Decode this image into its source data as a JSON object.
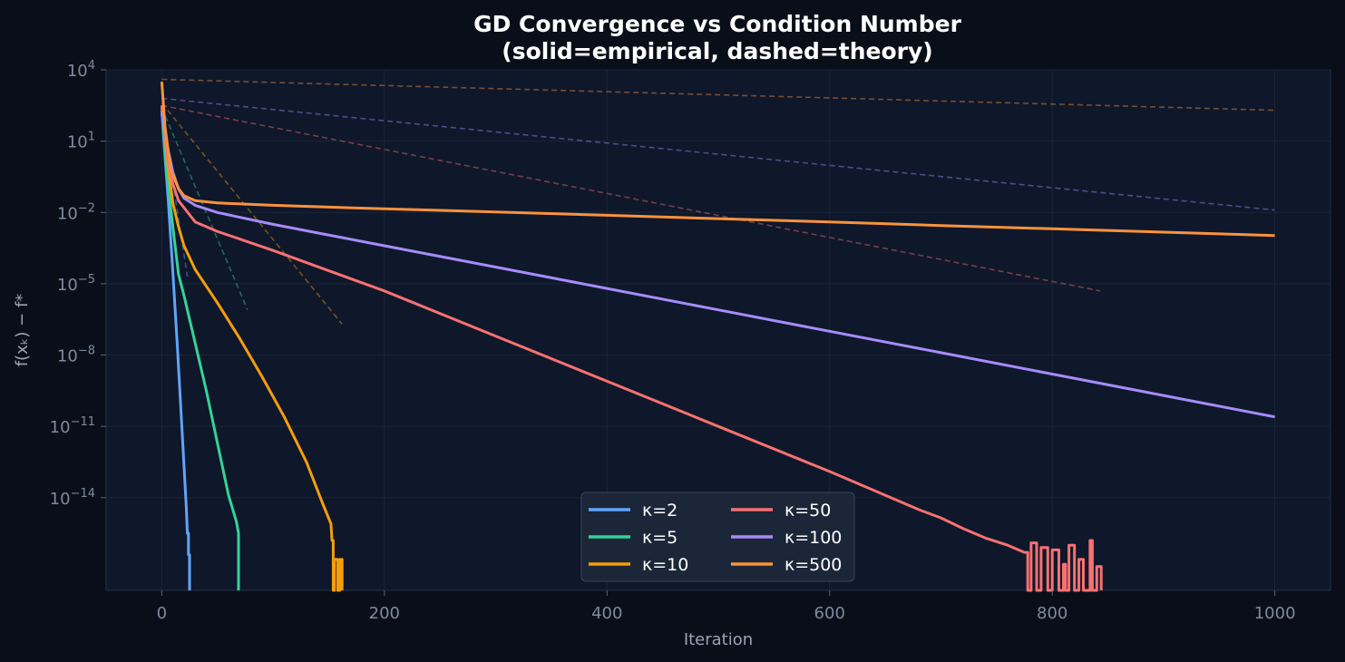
{
  "chart_data": {
    "type": "line",
    "title": "GD Convergence vs Condition Number",
    "subtitle": "(solid=empirical, dashed=theory)",
    "xlabel": "Iteration",
    "ylabel": "f(xₖ) − f*",
    "xlim": [
      -50,
      1050
    ],
    "ylim_exponent": [
      -17.9,
      4
    ],
    "yscale": "log",
    "x_ticks": [
      0,
      200,
      400,
      600,
      800,
      1000
    ],
    "y_tick_exponents": [
      4,
      1,
      -2,
      -5,
      -8,
      -11,
      -14
    ],
    "grid": true,
    "legend_position": "bottom-center",
    "legend_columns": 2,
    "series": [
      {
        "name": "κ=2",
        "color": "#60a5fa",
        "empirical": [
          [
            0,
            2.3
          ],
          [
            3,
            0.3
          ],
          [
            6,
            -1.6
          ],
          [
            10,
            -4.5
          ],
          [
            14,
            -7.6
          ],
          [
            18,
            -11
          ],
          [
            22,
            -14.4
          ],
          [
            23,
            -15.5
          ],
          [
            24,
            -15.5
          ],
          [
            24,
            -16.4
          ],
          [
            25,
            -16.4
          ],
          [
            25,
            -17.9
          ]
        ],
        "theory": [
          [
            0,
            2.3
          ],
          [
            23,
            -4.7
          ]
        ]
      },
      {
        "name": "κ=5",
        "color": "#34d399",
        "empirical": [
          [
            0,
            2.3
          ],
          [
            5,
            -0.5
          ],
          [
            10,
            -2.6
          ],
          [
            15,
            -4.6
          ],
          [
            20,
            -5.5
          ],
          [
            30,
            -7.5
          ],
          [
            40,
            -9.5
          ],
          [
            50,
            -11.7
          ],
          [
            60,
            -13.9
          ],
          [
            67,
            -15
          ],
          [
            69,
            -15.5
          ],
          [
            69,
            -17.9
          ]
        ],
        "theory": [
          [
            0,
            2.4
          ],
          [
            77,
            -6.1
          ]
        ]
      },
      {
        "name": "κ=10",
        "color": "#f59e0b",
        "empirical": [
          [
            0,
            2.5
          ],
          [
            5,
            0.2
          ],
          [
            10,
            -1.6
          ],
          [
            15,
            -2.6
          ],
          [
            20,
            -3.4
          ],
          [
            30,
            -4.4
          ],
          [
            50,
            -5.8
          ],
          [
            70,
            -7.3
          ],
          [
            90,
            -8.9
          ],
          [
            110,
            -10.6
          ],
          [
            130,
            -12.5
          ],
          [
            145,
            -14.3
          ],
          [
            152,
            -15.1
          ],
          [
            153,
            -15.8
          ],
          [
            154,
            -15.8
          ],
          [
            154,
            -17.9
          ],
          [
            155,
            -17.9
          ],
          [
            155,
            -16.6
          ],
          [
            158,
            -16.6
          ],
          [
            158,
            -17.9
          ],
          [
            160,
            -17.9
          ],
          [
            160,
            -16.6
          ],
          [
            162,
            -16.6
          ],
          [
            162,
            -17.9
          ]
        ],
        "theory": [
          [
            0,
            2.6
          ],
          [
            162,
            -6.7
          ]
        ]
      },
      {
        "name": "κ=50",
        "color": "#f87171",
        "empirical": [
          [
            0,
            2.5
          ],
          [
            5,
            0.4
          ],
          [
            10,
            -0.8
          ],
          [
            15,
            -1.5
          ],
          [
            20,
            -1.8
          ],
          [
            30,
            -2.4
          ],
          [
            50,
            -2.8
          ],
          [
            100,
            -3.6
          ],
          [
            200,
            -5.3
          ],
          [
            300,
            -7.2
          ],
          [
            400,
            -9.1
          ],
          [
            500,
            -11
          ],
          [
            600,
            -12.9
          ],
          [
            680,
            -14.5
          ],
          [
            700,
            -14.85
          ],
          [
            720,
            -15.3
          ],
          [
            740,
            -15.7
          ],
          [
            760,
            -16.0
          ],
          [
            775,
            -16.3
          ],
          [
            778,
            -16.3
          ],
          [
            778,
            -17.9
          ],
          [
            781,
            -17.9
          ],
          [
            781,
            -15.9
          ],
          [
            786,
            -15.9
          ],
          [
            786,
            -17.9
          ],
          [
            790,
            -17.9
          ],
          [
            790,
            -16.1
          ],
          [
            796,
            -16.1
          ],
          [
            796,
            -17.9
          ],
          [
            800,
            -17.9
          ],
          [
            800,
            -16.2
          ],
          [
            806,
            -16.2
          ],
          [
            806,
            -17.9
          ],
          [
            810,
            -17.9
          ],
          [
            810,
            -16.8
          ],
          [
            812,
            -16.8
          ],
          [
            812,
            -17.9
          ],
          [
            815,
            -17.9
          ],
          [
            815,
            -16.0
          ],
          [
            820,
            -16.0
          ],
          [
            820,
            -17.9
          ],
          [
            824,
            -17.9
          ],
          [
            824,
            -16.6
          ],
          [
            828,
            -16.6
          ],
          [
            828,
            -17.9
          ],
          [
            834,
            -17.9
          ],
          [
            834,
            -15.8
          ],
          [
            836,
            -15.8
          ],
          [
            836,
            -17.9
          ],
          [
            840,
            -17.9
          ],
          [
            840,
            -16.9
          ],
          [
            844,
            -16.9
          ],
          [
            844,
            -17.9
          ]
        ],
        "theory": [
          [
            0,
            2.5
          ],
          [
            843,
            -5.3
          ]
        ]
      },
      {
        "name": "κ=100",
        "color": "#a78bfa",
        "empirical": [
          [
            0,
            2.2
          ],
          [
            5,
            0.8
          ],
          [
            10,
            -0.3
          ],
          [
            15,
            -1.0
          ],
          [
            20,
            -1.4
          ],
          [
            30,
            -1.7
          ],
          [
            50,
            -2.0
          ],
          [
            100,
            -2.5
          ],
          [
            200,
            -3.4
          ],
          [
            300,
            -4.3
          ],
          [
            400,
            -5.2
          ],
          [
            500,
            -6.1
          ],
          [
            600,
            -7.0
          ],
          [
            700,
            -7.9
          ],
          [
            800,
            -8.8
          ],
          [
            900,
            -9.7
          ],
          [
            1000,
            -10.6
          ]
        ],
        "theory": [
          [
            0,
            2.8
          ],
          [
            1000,
            -1.9
          ]
        ]
      },
      {
        "name": "κ=500",
        "color": "#fb923c",
        "empirical": [
          [
            0,
            3.5
          ],
          [
            3,
            1.6
          ],
          [
            8,
            -0.2
          ],
          [
            15,
            -1.0
          ],
          [
            20,
            -1.3
          ],
          [
            30,
            -1.5
          ],
          [
            50,
            -1.6
          ],
          [
            100,
            -1.7
          ],
          [
            200,
            -1.85
          ],
          [
            300,
            -1.98
          ],
          [
            400,
            -2.12
          ],
          [
            500,
            -2.26
          ],
          [
            600,
            -2.4
          ],
          [
            700,
            -2.55
          ],
          [
            800,
            -2.69
          ],
          [
            900,
            -2.83
          ],
          [
            1000,
            -2.97
          ]
        ],
        "theory": [
          [
            0,
            3.6
          ],
          [
            1000,
            2.3
          ]
        ]
      }
    ]
  }
}
